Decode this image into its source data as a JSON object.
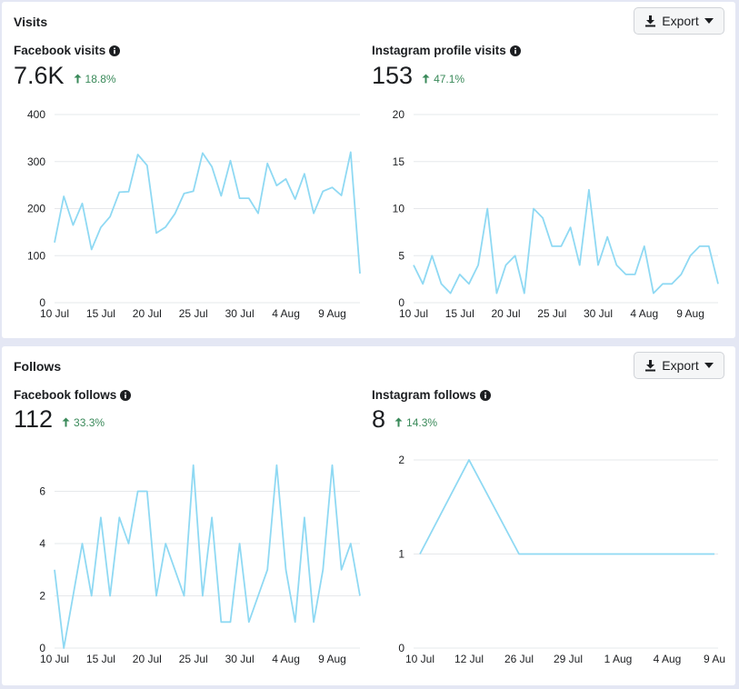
{
  "colors": {
    "line": "#8fd9f3",
    "grid": "#e6e8eb",
    "delta": "#3a8a5a"
  },
  "panels": [
    {
      "title": "Visits",
      "export_label": "Export",
      "metrics": [
        {
          "title": "Facebook visits",
          "value": "7.6K",
          "delta": "18.8%",
          "delta_direction": "up"
        },
        {
          "title": "Instagram profile visits",
          "value": "153",
          "delta": "47.1%",
          "delta_direction": "up"
        }
      ]
    },
    {
      "title": "Follows",
      "export_label": "Export",
      "metrics": [
        {
          "title": "Facebook follows",
          "value": "112",
          "delta": "33.3%",
          "delta_direction": "up"
        },
        {
          "title": "Instagram follows",
          "value": "8",
          "delta": "14.3%",
          "delta_direction": "up"
        }
      ]
    }
  ],
  "chart_data": [
    {
      "type": "line",
      "title": "Facebook visits",
      "x_start": "10 Jul",
      "x_ticks": [
        "10 Jul",
        "15 Jul",
        "20 Jul",
        "25 Jul",
        "30 Jul",
        "4 Aug",
        "9 Aug"
      ],
      "y_ticks": [
        0,
        100,
        200,
        300,
        400
      ],
      "ylim": [
        0,
        400
      ],
      "grid": true,
      "values": [
        128,
        226,
        165,
        211,
        113,
        160,
        183,
        235,
        236,
        315,
        292,
        148,
        161,
        189,
        232,
        237,
        318,
        289,
        227,
        302,
        222,
        222,
        190,
        296,
        249,
        263,
        220,
        274,
        190,
        237,
        245,
        228,
        320,
        62
      ]
    },
    {
      "type": "line",
      "title": "Instagram profile visits",
      "x_start": "10 Jul",
      "x_ticks": [
        "10 Jul",
        "15 Jul",
        "20 Jul",
        "25 Jul",
        "30 Jul",
        "4 Aug",
        "9 Aug"
      ],
      "y_ticks": [
        0,
        5,
        10,
        15,
        20
      ],
      "ylim": [
        0,
        20
      ],
      "grid": true,
      "values": [
        4,
        2,
        5,
        2,
        1,
        3,
        2,
        4,
        10,
        1,
        4,
        5,
        1,
        10,
        9,
        6,
        6,
        8,
        4,
        12,
        4,
        7,
        4,
        3,
        3,
        6,
        1,
        2,
        2,
        3,
        5,
        6,
        6,
        2
      ]
    },
    {
      "type": "line",
      "title": "Facebook follows",
      "x_start": "10 Jul",
      "x_ticks": [
        "10 Jul",
        "15 Jul",
        "20 Jul",
        "25 Jul",
        "30 Jul",
        "4 Aug",
        "9 Aug"
      ],
      "y_ticks": [
        0,
        2,
        4,
        6
      ],
      "ylim": [
        0,
        7.2
      ],
      "grid": true,
      "values": [
        3,
        0,
        2,
        4,
        2,
        5,
        2,
        5,
        4,
        6,
        6,
        2,
        4,
        3,
        2,
        7,
        2,
        5,
        1,
        1,
        4,
        1,
        2,
        3,
        7,
        3,
        1,
        5,
        1,
        3,
        7,
        3,
        4,
        2
      ]
    },
    {
      "type": "line",
      "title": "Instagram follows",
      "x_ticks": [
        "10 Jul",
        "12 Jul",
        "26 Jul",
        "29 Jul",
        "1 Aug",
        "4 Aug",
        "9 Au"
      ],
      "y_ticks": [
        0,
        1,
        2
      ],
      "ylim": [
        0,
        2
      ],
      "grid": true,
      "points": [
        {
          "x": "10 Jul",
          "y": 1
        },
        {
          "x": "12 Jul",
          "y": 2
        },
        {
          "x": "26 Jul",
          "y": 1
        },
        {
          "x": "29 Jul",
          "y": 1
        },
        {
          "x": "1 Aug",
          "y": 1
        },
        {
          "x": "4 Aug",
          "y": 1
        },
        {
          "x": "9 Au",
          "y": 1
        }
      ]
    }
  ]
}
